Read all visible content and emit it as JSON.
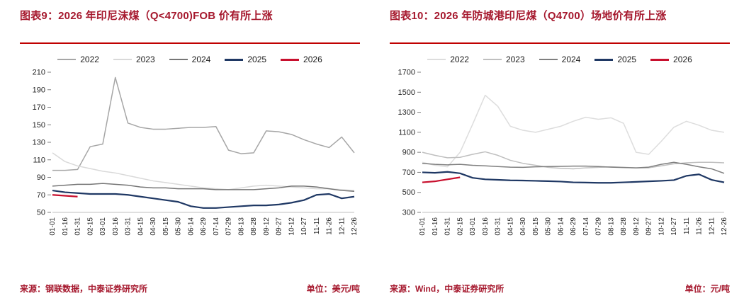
{
  "panels": [
    {
      "title": "图表9：2026 年印尼沫煤（Q<4700)FOB 价有所上涨",
      "source": "来源：钢联数据，中泰证券研究所",
      "unit": "单位：美元/吨"
    },
    {
      "title": "图表10：2026 年防城港印尼煤（Q4700）场地价有所上涨",
      "source": "来源：Wind，中泰证券研究所",
      "unit": "单位：元/吨"
    }
  ],
  "colors": {
    "title_red": "#A6192E",
    "rule_red": "#C00000",
    "navy_2025": "#1F3864",
    "red_2026": "#C8102E"
  },
  "chart_data": [
    {
      "type": "line",
      "title": "2026 年印尼沫煤（Q<4700)FOB 价有所上涨",
      "ylabel": "美元/吨",
      "ylim": [
        50,
        210
      ],
      "yticks": [
        50,
        70,
        90,
        110,
        130,
        150,
        170,
        190,
        210
      ],
      "grid": false,
      "legend_position": "top",
      "categories": [
        "01-01",
        "01-16",
        "01-31",
        "02-15",
        "03-01",
        "03-16",
        "03-31",
        "04-15",
        "04-30",
        "05-15",
        "05-30",
        "06-14",
        "06-29",
        "07-14",
        "07-29",
        "08-13",
        "08-28",
        "09-12",
        "09-27",
        "10-12",
        "10-27",
        "11-11",
        "11-26",
        "12-11",
        "12-26"
      ],
      "series": [
        {
          "name": "2022",
          "color": "#A6A6A6",
          "emphasis": false,
          "values": [
            98,
            98,
            99,
            125,
            128,
            204,
            152,
            147,
            145,
            145,
            146,
            147,
            147,
            148,
            121,
            117,
            118,
            143,
            142,
            139,
            133,
            128,
            124,
            136,
            118
          ]
        },
        {
          "name": "2023",
          "color": "#D9D9D9",
          "emphasis": false,
          "values": [
            118,
            108,
            103,
            100,
            97,
            95,
            92,
            89,
            86,
            84,
            82,
            80,
            78,
            77,
            76,
            78,
            80,
            81,
            80,
            79,
            78,
            77,
            77,
            76,
            75
          ]
        },
        {
          "name": "2024",
          "color": "#767676",
          "emphasis": false,
          "values": [
            80,
            81,
            82,
            82,
            83,
            82,
            81,
            79,
            78,
            78,
            77,
            77,
            77,
            76,
            76,
            76,
            76,
            77,
            78,
            80,
            80,
            79,
            77,
            75,
            74
          ]
        },
        {
          "name": "2025",
          "color": "#1F3864",
          "emphasis": true,
          "values": [
            75,
            73,
            72,
            71,
            71,
            71,
            70,
            68,
            66,
            64,
            62,
            57,
            55,
            55,
            56,
            57,
            58,
            58,
            59,
            61,
            64,
            70,
            71,
            66,
            68
          ]
        },
        {
          "name": "2026",
          "color": "#C8102E",
          "emphasis": true,
          "values": [
            70,
            69,
            68,
            null,
            null,
            null,
            null,
            null,
            null,
            null,
            null,
            null,
            null,
            null,
            null,
            null,
            null,
            null,
            null,
            null,
            null,
            null,
            null,
            null,
            null
          ]
        }
      ]
    },
    {
      "type": "line",
      "title": "2026 年防城港印尼煤（Q4700）场地价有所上涨",
      "ylabel": "元/吨",
      "ylim": [
        300,
        1700
      ],
      "yticks": [
        300,
        500,
        700,
        900,
        1100,
        1300,
        1500,
        1700
      ],
      "grid": false,
      "legend_position": "top",
      "categories": [
        "01-01",
        "01-16",
        "01-31",
        "02-15",
        "03-01",
        "03-16",
        "03-31",
        "04-15",
        "04-30",
        "05-15",
        "05-30",
        "06-14",
        "06-29",
        "07-14",
        "07-29",
        "08-13",
        "08-28",
        "09-12",
        "09-27",
        "10-12",
        "10-27",
        "11-11",
        "11-26",
        "12-11",
        "12-26"
      ],
      "series": [
        {
          "name": "2022",
          "color": "#DDDDDD",
          "emphasis": false,
          "values": [
            800,
            770,
            755,
            900,
            1180,
            1470,
            1360,
            1160,
            1120,
            1100,
            1130,
            1160,
            1210,
            1250,
            1230,
            1245,
            1190,
            900,
            880,
            1010,
            1150,
            1210,
            1170,
            1120,
            1100
          ]
        },
        {
          "name": "2023",
          "color": "#BFBFBF",
          "emphasis": false,
          "values": [
            900,
            870,
            845,
            850,
            880,
            905,
            870,
            820,
            790,
            770,
            750,
            740,
            735,
            745,
            750,
            755,
            750,
            745,
            745,
            765,
            785,
            795,
            800,
            800,
            795
          ]
        },
        {
          "name": "2024",
          "color": "#7F7F7F",
          "emphasis": false,
          "values": [
            790,
            780,
            775,
            780,
            770,
            765,
            758,
            752,
            750,
            755,
            758,
            760,
            762,
            762,
            758,
            752,
            748,
            745,
            752,
            780,
            800,
            780,
            755,
            735,
            690
          ]
        },
        {
          "name": "2025",
          "color": "#1F3864",
          "emphasis": true,
          "values": [
            700,
            695,
            705,
            690,
            645,
            630,
            625,
            620,
            618,
            615,
            612,
            608,
            600,
            598,
            595,
            595,
            600,
            605,
            610,
            615,
            622,
            665,
            680,
            625,
            600
          ]
        },
        {
          "name": "2026",
          "color": "#C8102E",
          "emphasis": true,
          "values": [
            600,
            610,
            630,
            650,
            null,
            null,
            null,
            null,
            null,
            null,
            null,
            null,
            null,
            null,
            null,
            null,
            null,
            null,
            null,
            null,
            null,
            null,
            null,
            null,
            null
          ]
        }
      ]
    }
  ]
}
